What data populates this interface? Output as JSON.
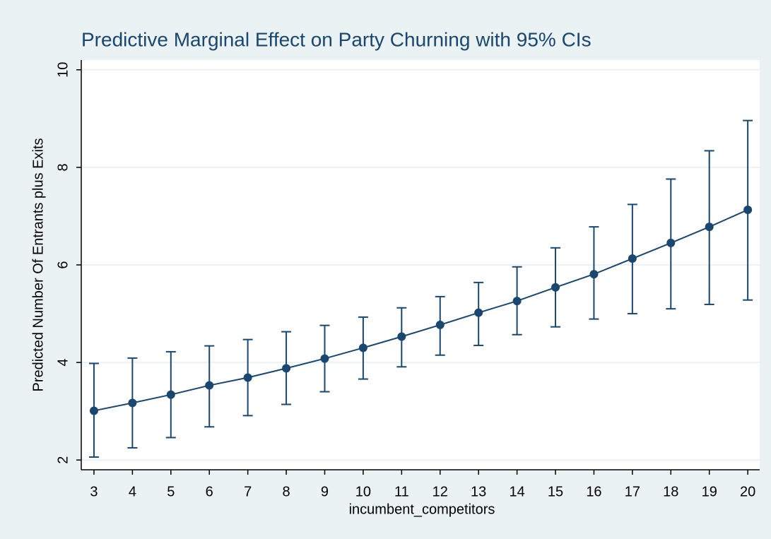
{
  "chart_data": {
    "type": "errorbar",
    "title": "Predictive Marginal Effect on Party Churning with 95% CIs",
    "x_label": "incumbent_competitors",
    "y_label": "Predicted Number Of Entrants plus Exits",
    "x": [
      3,
      4,
      5,
      6,
      7,
      8,
      9,
      10,
      11,
      12,
      13,
      14,
      15,
      16,
      17,
      18,
      19,
      20
    ],
    "values": [
      3.01,
      3.17,
      3.34,
      3.53,
      3.69,
      3.88,
      4.08,
      4.3,
      4.53,
      4.77,
      5.02,
      5.26,
      5.54,
      5.81,
      6.13,
      6.45,
      6.78,
      7.13
    ],
    "ci_lower": [
      2.06,
      2.25,
      2.46,
      2.68,
      2.91,
      3.14,
      3.4,
      3.66,
      3.91,
      4.15,
      4.35,
      4.57,
      4.73,
      4.89,
      5.0,
      5.1,
      5.19,
      5.28
    ],
    "ci_upper": [
      3.98,
      4.09,
      4.22,
      4.34,
      4.47,
      4.63,
      4.76,
      4.93,
      5.12,
      5.35,
      5.64,
      5.96,
      6.35,
      6.78,
      7.24,
      7.76,
      8.34,
      8.96
    ],
    "color": "#1a476f",
    "xlim": [
      2.67,
      20.31
    ],
    "ylim": [
      1.8,
      10.2
    ],
    "xticks": [
      3,
      4,
      5,
      6,
      7,
      8,
      9,
      10,
      11,
      12,
      13,
      14,
      15,
      16,
      17,
      18,
      19,
      20
    ],
    "yticks": [
      2,
      4,
      6,
      8,
      10
    ],
    "grid": true
  }
}
